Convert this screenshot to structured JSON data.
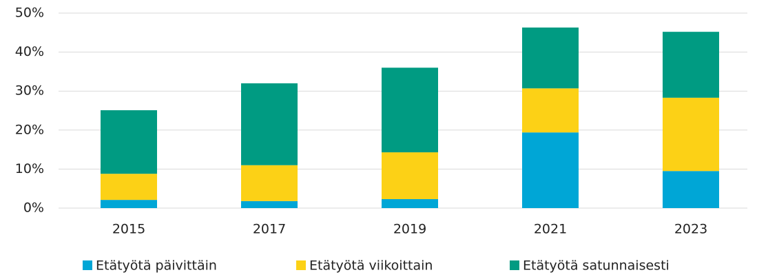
{
  "chart_data": {
    "type": "stacked_bar",
    "categories": [
      "2015",
      "2017",
      "2019",
      "2021",
      "2023"
    ],
    "series": [
      {
        "name": "Etätyötä päivittäin",
        "color": "#00a6d6",
        "values": [
          2.1,
          1.8,
          2.3,
          19.4,
          9.5
        ]
      },
      {
        "name": "Etätyötä viikoittain",
        "color": "#fcd116",
        "values": [
          6.7,
          9.2,
          12.0,
          11.3,
          18.8
        ]
      },
      {
        "name": "Etätyötä satunnaisesti",
        "color": "#009b82",
        "values": [
          16.3,
          21.0,
          21.7,
          15.6,
          16.9
        ]
      }
    ],
    "ylim": [
      0,
      50
    ],
    "yticks": [
      {
        "value": 0,
        "label": "0%"
      },
      {
        "value": 10,
        "label": "10%"
      },
      {
        "value": 20,
        "label": "20%"
      },
      {
        "value": 30,
        "label": "30%"
      },
      {
        "value": 40,
        "label": "40%"
      },
      {
        "value": 50,
        "label": "50%"
      }
    ],
    "grid": true,
    "legend": "bottom"
  }
}
